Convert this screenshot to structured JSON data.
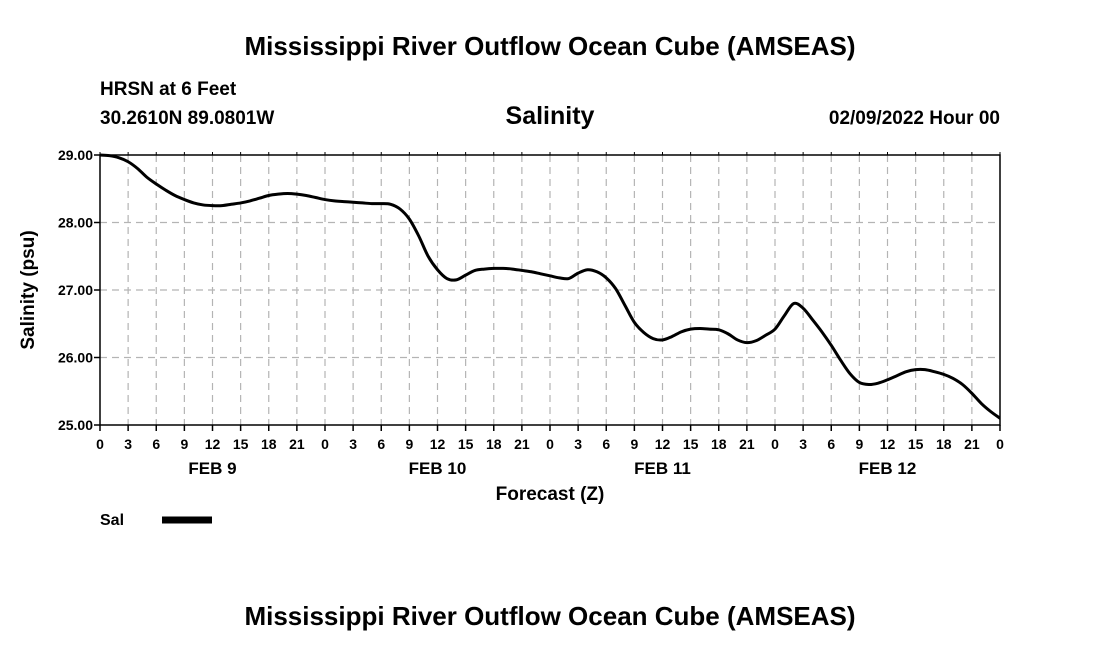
{
  "header": {
    "title": "Mississippi River Outflow Ocean Cube (AMSEAS)",
    "station": "HRSN at 6 Feet",
    "coords": "30.2610N  89.0801W",
    "variable": "Salinity",
    "date": "02/09/2022 Hour 00"
  },
  "footer": {
    "title": "Mississippi River Outflow Ocean Cube (AMSEAS)"
  },
  "legend": {
    "label": "Sal"
  },
  "chart_data": {
    "type": "line",
    "title": "Salinity",
    "xlabel": "Forecast (Z)",
    "ylabel": "Salinity (psu)",
    "xlim": [
      0,
      96
    ],
    "ylim": [
      25.0,
      29.0
    ],
    "grid": true,
    "yticks": [
      "25.00",
      "26.00",
      "27.00",
      "28.00",
      "29.00"
    ],
    "xtick_labels": [
      "0",
      "3",
      "6",
      "9",
      "12",
      "15",
      "18",
      "21",
      "0",
      "3",
      "6",
      "9",
      "12",
      "15",
      "18",
      "21",
      "0",
      "3",
      "6",
      "9",
      "12",
      "15",
      "18",
      "21",
      "0",
      "3",
      "6",
      "9",
      "12",
      "15",
      "18",
      "21",
      "0"
    ],
    "day_labels": [
      {
        "label": "FEB 9",
        "hour": 12
      },
      {
        "label": "FEB 10",
        "hour": 36
      },
      {
        "label": "FEB 11",
        "hour": 60
      },
      {
        "label": "FEB 12",
        "hour": 84
      }
    ],
    "series": [
      {
        "name": "Sal",
        "color": "#000000",
        "x": [
          0,
          1,
          2,
          3,
          4,
          5,
          6,
          7,
          8,
          9,
          10,
          11,
          12,
          13,
          14,
          15,
          16,
          17,
          18,
          19,
          20,
          21,
          22,
          23,
          24,
          25,
          26,
          27,
          28,
          29,
          30,
          31,
          32,
          33,
          34,
          35,
          36,
          37,
          38,
          39,
          40,
          41,
          42,
          43,
          44,
          45,
          46,
          47,
          48,
          49,
          50,
          51,
          52,
          53,
          54,
          55,
          56,
          57,
          58,
          59,
          60,
          61,
          62,
          63,
          64,
          65,
          66,
          67,
          68,
          69,
          70,
          71,
          72,
          73,
          74,
          75,
          76,
          77,
          78,
          79,
          80,
          81,
          82,
          83,
          84,
          85,
          86,
          87,
          88,
          89,
          90,
          91,
          92,
          93,
          94,
          95,
          96
        ],
        "values": [
          29.0,
          28.99,
          28.96,
          28.9,
          28.8,
          28.67,
          28.57,
          28.48,
          28.4,
          28.34,
          28.29,
          28.26,
          28.25,
          28.25,
          28.27,
          28.29,
          28.32,
          28.36,
          28.4,
          28.42,
          28.43,
          28.42,
          28.4,
          28.37,
          28.34,
          28.32,
          28.31,
          28.3,
          28.29,
          28.28,
          28.28,
          28.27,
          28.2,
          28.05,
          27.8,
          27.5,
          27.3,
          27.17,
          27.15,
          27.22,
          27.29,
          27.31,
          27.32,
          27.32,
          27.31,
          27.29,
          27.27,
          27.24,
          27.21,
          27.18,
          27.17,
          27.25,
          27.3,
          27.27,
          27.18,
          27.02,
          26.77,
          26.52,
          26.37,
          26.28,
          26.26,
          26.31,
          26.38,
          26.42,
          26.43,
          26.42,
          26.41,
          26.35,
          26.26,
          26.22,
          26.25,
          26.33,
          26.42,
          26.62,
          26.8,
          26.73,
          26.56,
          26.38,
          26.18,
          25.96,
          25.76,
          25.63,
          25.6,
          25.62,
          25.67,
          25.73,
          25.79,
          25.82,
          25.82,
          25.79,
          25.75,
          25.69,
          25.6,
          25.47,
          25.32,
          25.2,
          25.1
        ]
      }
    ]
  }
}
